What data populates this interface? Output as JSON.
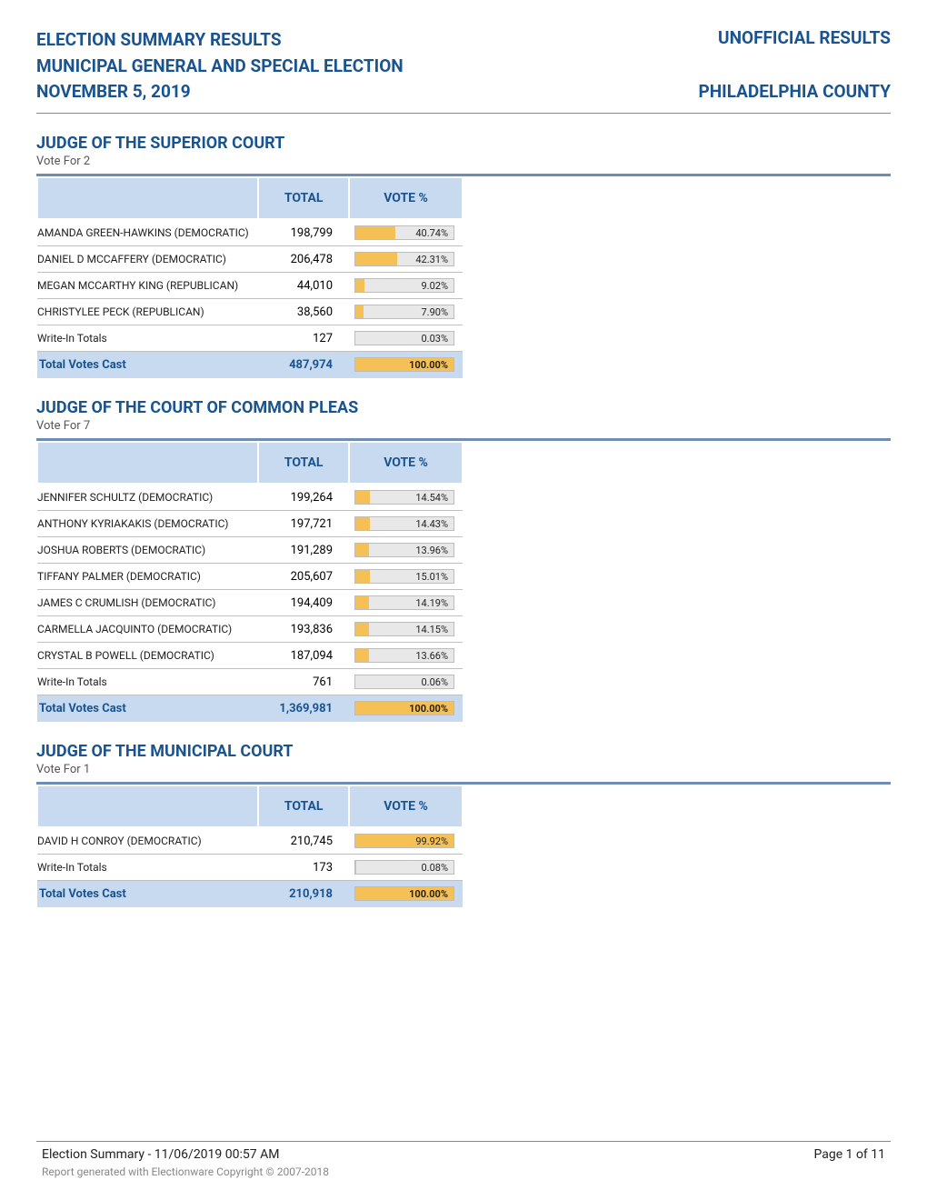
{
  "header": {
    "line1": "ELECTION SUMMARY RESULTS",
    "line2": "MUNICIPAL GENERAL AND SPECIAL ELECTION",
    "line3": "NOVEMBER 5, 2019",
    "right_top": "UNOFFICIAL RESULTS",
    "right_bottom": "PHILADELPHIA COUNTY"
  },
  "columns": {
    "total": "TOTAL",
    "vote_pct": "VOTE %"
  },
  "total_row_label": "Total Votes Cast",
  "colors": {
    "brand_blue": "#1a5490",
    "header_bg": "#c7daf0",
    "bar_bg": "#e8e8e8",
    "bar_fill": "#f5c055",
    "rule": "#6d8db5"
  },
  "contests": [
    {
      "title": "JUDGE OF THE SUPERIOR COURT",
      "vote_for": "Vote For 2",
      "rows": [
        {
          "name": "AMANDA GREEN-HAWKINS (DEMOCRATIC)",
          "total": "198,799",
          "pct": "40.74%",
          "pct_num": 40.74
        },
        {
          "name": "DANIEL D MCCAFFERY (DEMOCRATIC)",
          "total": "206,478",
          "pct": "42.31%",
          "pct_num": 42.31
        },
        {
          "name": "MEGAN MCCARTHY KING (REPUBLICAN)",
          "total": "44,010",
          "pct": "9.02%",
          "pct_num": 9.02
        },
        {
          "name": "CHRISTYLEE PECK (REPUBLICAN)",
          "total": "38,560",
          "pct": "7.90%",
          "pct_num": 7.9
        },
        {
          "name": "Write-In Totals",
          "total": "127",
          "pct": "0.03%",
          "pct_num": 0.03
        }
      ],
      "total": {
        "total": "487,974",
        "pct": "100.00%",
        "pct_num": 100.0
      }
    },
    {
      "title": "JUDGE OF THE COURT OF COMMON PLEAS",
      "vote_for": "Vote For 7",
      "rows": [
        {
          "name": "JENNIFER SCHULTZ (DEMOCRATIC)",
          "total": "199,264",
          "pct": "14.54%",
          "pct_num": 14.54
        },
        {
          "name": "ANTHONY KYRIAKAKIS (DEMOCRATIC)",
          "total": "197,721",
          "pct": "14.43%",
          "pct_num": 14.43
        },
        {
          "name": "JOSHUA ROBERTS (DEMOCRATIC)",
          "total": "191,289",
          "pct": "13.96%",
          "pct_num": 13.96
        },
        {
          "name": "TIFFANY PALMER (DEMOCRATIC)",
          "total": "205,607",
          "pct": "15.01%",
          "pct_num": 15.01
        },
        {
          "name": "JAMES C CRUMLISH (DEMOCRATIC)",
          "total": "194,409",
          "pct": "14.19%",
          "pct_num": 14.19
        },
        {
          "name": "CARMELLA JACQUINTO (DEMOCRATIC)",
          "total": "193,836",
          "pct": "14.15%",
          "pct_num": 14.15
        },
        {
          "name": "CRYSTAL B POWELL (DEMOCRATIC)",
          "total": "187,094",
          "pct": "13.66%",
          "pct_num": 13.66
        },
        {
          "name": "Write-In Totals",
          "total": "761",
          "pct": "0.06%",
          "pct_num": 0.06
        }
      ],
      "total": {
        "total": "1,369,981",
        "pct": "100.00%",
        "pct_num": 100.0
      }
    },
    {
      "title": "JUDGE OF THE MUNICIPAL COURT",
      "vote_for": "Vote For 1",
      "rows": [
        {
          "name": "DAVID H CONROY (DEMOCRATIC)",
          "total": "210,745",
          "pct": "99.92%",
          "pct_num": 99.92
        },
        {
          "name": "Write-In Totals",
          "total": "173",
          "pct": "0.08%",
          "pct_num": 0.08
        }
      ],
      "total": {
        "total": "210,918",
        "pct": "100.00%",
        "pct_num": 100.0
      }
    }
  ],
  "footer": {
    "left": "Election Summary - 11/06/2019    00:57 AM",
    "right": "Page 1 of 11",
    "sub": "Report generated with Electionware Copyright © 2007-2018"
  }
}
